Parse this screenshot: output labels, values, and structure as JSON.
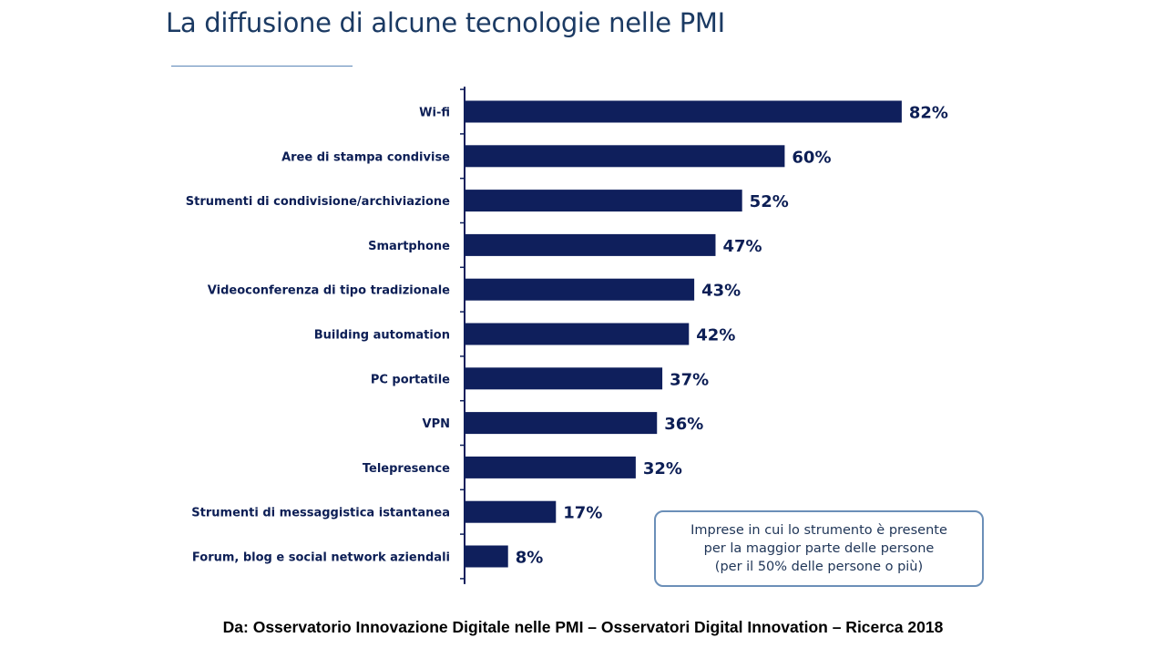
{
  "title": "La diffusione di alcune tecnologie nelle PMI",
  "note": "Imprese in cui lo strumento è presente\nper la maggior parte delle persone\n(per il 50% delle persone o più)",
  "source": "Da: Osservatorio Innovazione Digitale nelle PMI – Osservatori Digital Innovation – Ricerca 2018",
  "colors": {
    "bar": "#0f1f5c",
    "text": "#0c1e55",
    "title": "#1b3a63",
    "accent": "#6b8fb8"
  },
  "chart_data": {
    "type": "bar",
    "orientation": "horizontal",
    "categories": [
      "Wi-fi",
      "Aree di stampa condivise",
      "Strumenti di condivisione/archiviazione",
      "Smartphone",
      "Videoconferenza di tipo tradizionale",
      "Building automation",
      "PC portatile",
      "VPN",
      "Telepresence",
      "Strumenti di messaggistica istantanea",
      "Forum, blog e social network aziendali"
    ],
    "values": [
      82,
      60,
      52,
      47,
      43,
      42,
      37,
      36,
      32,
      17,
      8
    ],
    "value_labels": [
      "82%",
      "60%",
      "52%",
      "47%",
      "43%",
      "42%",
      "37%",
      "36%",
      "32%",
      "17%",
      "8%"
    ],
    "xlim": [
      0,
      100
    ],
    "grid": false,
    "legend": "none"
  }
}
